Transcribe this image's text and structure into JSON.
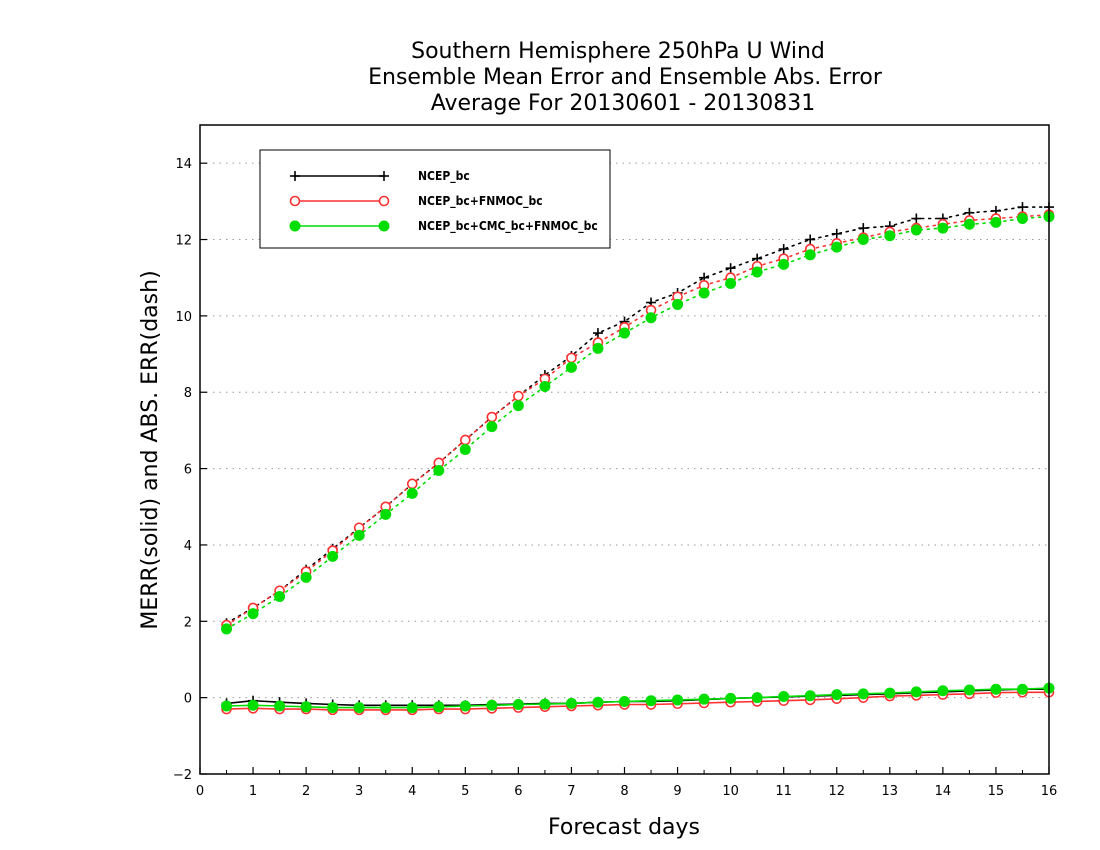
{
  "chart_data": {
    "type": "line",
    "title": [
      "Southern Hemisphere 250hPa U Wind",
      "Ensemble Mean Error and Ensemble Abs. Error",
      "Average For 20130601 - 20130831"
    ],
    "xlabel": "Forecast days",
    "ylabel": "MERR(solid) and ABS. ERR(dash)",
    "xlim": [
      0,
      16
    ],
    "ylim": [
      -2,
      15
    ],
    "x_ticks": [
      0,
      1,
      2,
      3,
      4,
      5,
      6,
      7,
      8,
      9,
      10,
      11,
      12,
      13,
      14,
      15,
      16
    ],
    "y_ticks": [
      -2,
      0,
      2,
      4,
      6,
      8,
      10,
      12,
      14
    ],
    "grid": "horizontal-dotted",
    "legend_placement": "top-left",
    "x": [
      0.5,
      1,
      1.5,
      2,
      2.5,
      3,
      3.5,
      4,
      4.5,
      5,
      5.5,
      6,
      6.5,
      7,
      7.5,
      8,
      8.5,
      9,
      9.5,
      10,
      10.5,
      11,
      11.5,
      12,
      12.5,
      13,
      13.5,
      14,
      14.5,
      15,
      15.5,
      16
    ],
    "series": [
      {
        "name": "NCEP_bc",
        "color": "#000000",
        "marker": "plus",
        "merr": [
          -0.15,
          -0.08,
          -0.12,
          -0.15,
          -0.18,
          -0.2,
          -0.2,
          -0.2,
          -0.2,
          -0.2,
          -0.18,
          -0.17,
          -0.15,
          -0.15,
          -0.12,
          -0.1,
          -0.1,
          -0.08,
          -0.05,
          -0.02,
          0.0,
          0.02,
          0.04,
          0.06,
          0.08,
          0.1,
          0.13,
          0.15,
          0.18,
          0.2,
          0.22,
          0.22
        ],
        "abs_err": [
          1.95,
          2.35,
          2.8,
          3.35,
          3.9,
          4.45,
          5.0,
          5.6,
          6.15,
          6.75,
          7.35,
          7.9,
          8.45,
          8.95,
          9.55,
          9.85,
          10.35,
          10.6,
          11.0,
          11.25,
          11.5,
          11.75,
          12.0,
          12.15,
          12.3,
          12.35,
          12.55,
          12.55,
          12.7,
          12.75,
          12.85,
          12.85
        ]
      },
      {
        "name": "NCEP_bc+FNMOC_bc",
        "color": "#ff3030",
        "marker": "open-circle",
        "merr": [
          -0.3,
          -0.28,
          -0.3,
          -0.3,
          -0.32,
          -0.32,
          -0.32,
          -0.32,
          -0.3,
          -0.3,
          -0.28,
          -0.26,
          -0.24,
          -0.22,
          -0.2,
          -0.18,
          -0.18,
          -0.16,
          -0.14,
          -0.12,
          -0.1,
          -0.08,
          -0.06,
          -0.03,
          0.0,
          0.04,
          0.06,
          0.08,
          0.1,
          0.13,
          0.14,
          0.14
        ],
        "abs_err": [
          1.9,
          2.35,
          2.8,
          3.3,
          3.85,
          4.45,
          5.0,
          5.6,
          6.15,
          6.75,
          7.35,
          7.9,
          8.35,
          8.9,
          9.3,
          9.7,
          10.15,
          10.5,
          10.8,
          11.0,
          11.3,
          11.5,
          11.75,
          11.9,
          12.05,
          12.2,
          12.3,
          12.4,
          12.5,
          12.55,
          12.6,
          12.65
        ]
      },
      {
        "name": "NCEP_bc+CMC_bc+FNMOC_bc",
        "color": "#00dd00",
        "marker": "filled-circle",
        "merr": [
          -0.22,
          -0.2,
          -0.22,
          -0.24,
          -0.26,
          -0.26,
          -0.26,
          -0.26,
          -0.24,
          -0.22,
          -0.2,
          -0.18,
          -0.17,
          -0.15,
          -0.12,
          -0.1,
          -0.08,
          -0.06,
          -0.04,
          -0.02,
          0.0,
          0.03,
          0.05,
          0.08,
          0.1,
          0.12,
          0.15,
          0.18,
          0.2,
          0.22,
          0.22,
          0.25
        ],
        "abs_err": [
          1.8,
          2.2,
          2.65,
          3.15,
          3.7,
          4.25,
          4.8,
          5.35,
          5.95,
          6.5,
          7.1,
          7.65,
          8.15,
          8.65,
          9.15,
          9.55,
          9.95,
          10.3,
          10.6,
          10.85,
          11.15,
          11.35,
          11.6,
          11.8,
          12.0,
          12.1,
          12.25,
          12.3,
          12.4,
          12.45,
          12.55,
          12.6
        ]
      }
    ]
  }
}
